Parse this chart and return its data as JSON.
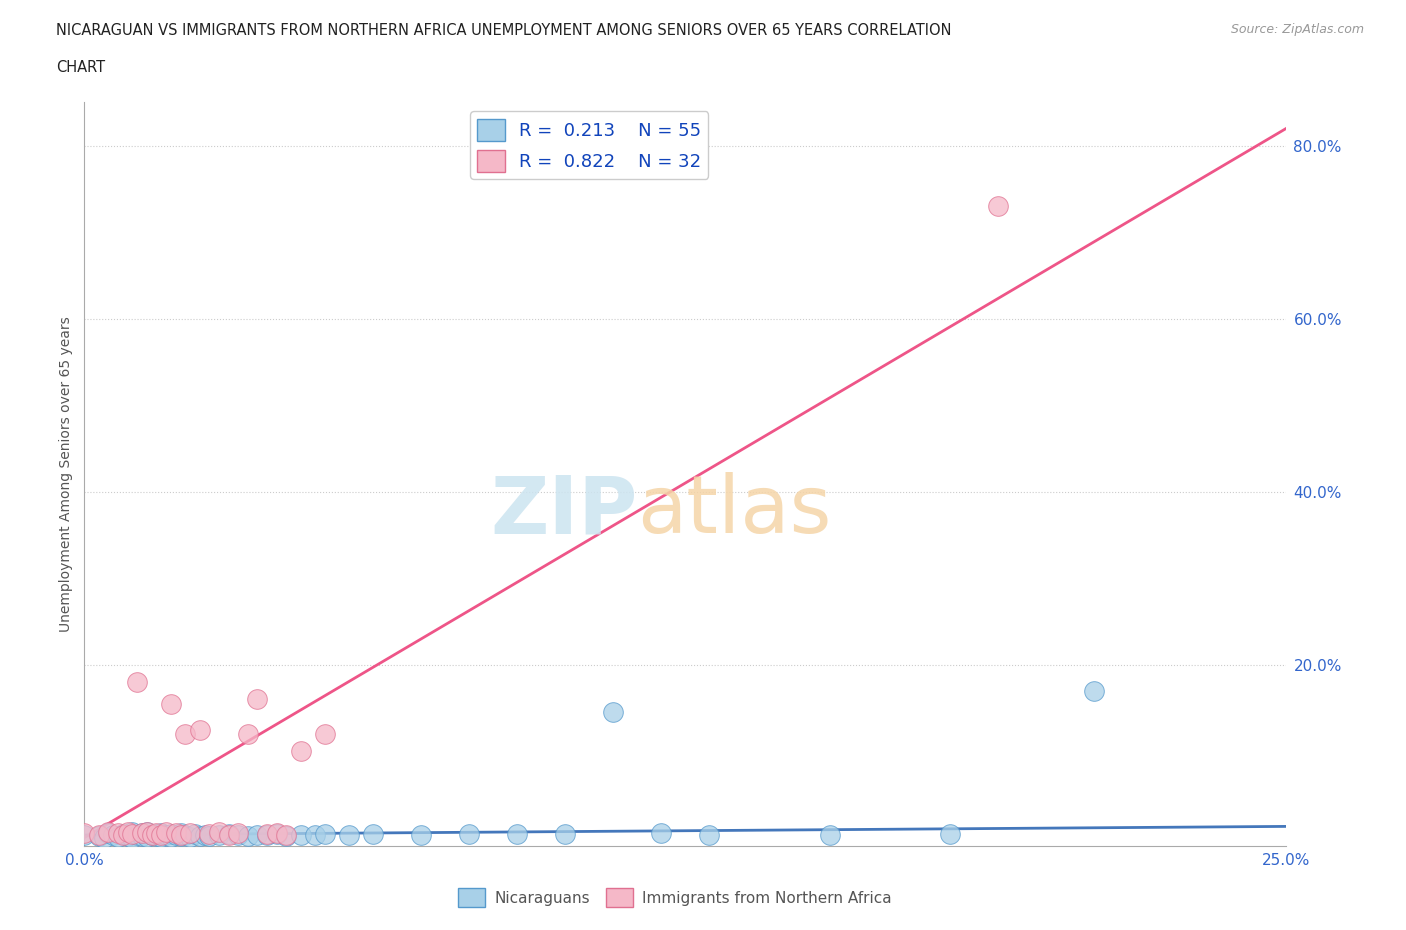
{
  "title_line1": "NICARAGUAN VS IMMIGRANTS FROM NORTHERN AFRICA UNEMPLOYMENT AMONG SENIORS OVER 65 YEARS CORRELATION",
  "title_line2": "CHART",
  "source_text": "Source: ZipAtlas.com",
  "ylabel": "Unemployment Among Seniors over 65 years",
  "xlim": [
    0.0,
    0.25
  ],
  "ylim": [
    -0.01,
    0.85
  ],
  "color_blue": "#a8d0e8",
  "color_pink": "#f5b8c8",
  "edge_blue": "#5599cc",
  "edge_pink": "#e07090",
  "trendline_blue_color": "#4477bb",
  "trendline_pink_color": "#ee5588",
  "blue_scatter_x": [
    0.0,
    0.003,
    0.004,
    0.005,
    0.006,
    0.007,
    0.008,
    0.009,
    0.01,
    0.01,
    0.011,
    0.012,
    0.012,
    0.013,
    0.013,
    0.014,
    0.015,
    0.015,
    0.016,
    0.016,
    0.017,
    0.018,
    0.018,
    0.019,
    0.02,
    0.02,
    0.021,
    0.022,
    0.023,
    0.024,
    0.025,
    0.026,
    0.028,
    0.03,
    0.032,
    0.034,
    0.036,
    0.038,
    0.04,
    0.042,
    0.045,
    0.048,
    0.05,
    0.055,
    0.06,
    0.07,
    0.08,
    0.09,
    0.1,
    0.11,
    0.12,
    0.13,
    0.155,
    0.18,
    0.21
  ],
  "blue_scatter_y": [
    0.003,
    0.002,
    0.0,
    0.005,
    0.003,
    0.001,
    0.004,
    0.002,
    0.0,
    0.007,
    0.003,
    0.005,
    0.002,
    0.001,
    0.006,
    0.003,
    0.004,
    0.002,
    0.001,
    0.005,
    0.003,
    0.004,
    0.001,
    0.003,
    0.005,
    0.002,
    0.003,
    0.001,
    0.004,
    0.002,
    0.003,
    0.002,
    0.003,
    0.004,
    0.003,
    0.002,
    0.003,
    0.003,
    0.004,
    0.002,
    0.003,
    0.003,
    0.004,
    0.003,
    0.004,
    0.003,
    0.004,
    0.004,
    0.004,
    0.145,
    0.005,
    0.003,
    0.003,
    0.004,
    0.17
  ],
  "pink_scatter_x": [
    0.0,
    0.003,
    0.005,
    0.007,
    0.008,
    0.009,
    0.01,
    0.011,
    0.012,
    0.013,
    0.014,
    0.015,
    0.016,
    0.017,
    0.018,
    0.019,
    0.02,
    0.021,
    0.022,
    0.024,
    0.026,
    0.028,
    0.03,
    0.032,
    0.034,
    0.036,
    0.038,
    0.04,
    0.042,
    0.045,
    0.05,
    0.19
  ],
  "pink_scatter_y": [
    0.005,
    0.003,
    0.006,
    0.005,
    0.003,
    0.006,
    0.004,
    0.18,
    0.005,
    0.006,
    0.003,
    0.005,
    0.003,
    0.006,
    0.155,
    0.005,
    0.003,
    0.12,
    0.005,
    0.125,
    0.004,
    0.006,
    0.003,
    0.005,
    0.12,
    0.16,
    0.004,
    0.005,
    0.003,
    0.1,
    0.12,
    0.73
  ],
  "blue_trend_x": [
    0.0,
    0.25
  ],
  "blue_trend_y": [
    0.003,
    0.013
  ],
  "pink_trend_x": [
    0.0,
    0.25
  ],
  "pink_trend_y": [
    0.0,
    0.82
  ]
}
